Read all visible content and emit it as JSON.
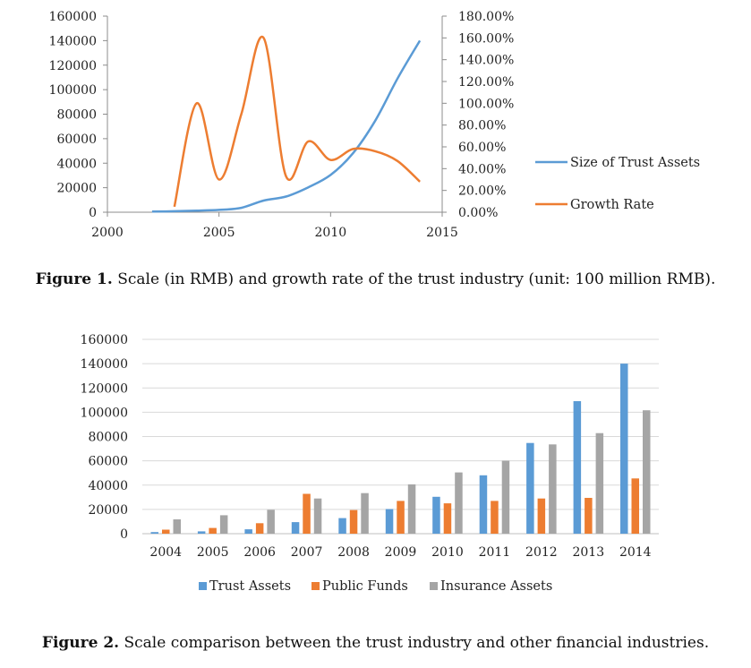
{
  "figures": [
    {
      "caption_label": "Figure 1.",
      "caption_text": "Scale (in RMB) and growth rate of the trust industry (unit: 100 million RMB)."
    },
    {
      "caption_label": "Figure 2.",
      "caption_text": "Scale comparison between the trust industry and other financial industries."
    }
  ],
  "chart_data": [
    {
      "type": "line",
      "title": "",
      "xlabel": "",
      "ylabel": "",
      "xlim": [
        2000,
        2015
      ],
      "x_ticks": [
        "2000",
        "2005",
        "2010",
        "2015"
      ],
      "ylim_left": [
        0,
        160000
      ],
      "y_ticks_left": [
        "0",
        "20000",
        "40000",
        "60000",
        "80000",
        "100000",
        "120000",
        "140000",
        "160000"
      ],
      "ylim_right": [
        0,
        180
      ],
      "y_ticks_right": [
        "0.00%",
        "20.00%",
        "40.00%",
        "60.00%",
        "80.00%",
        "100.00%",
        "120.00%",
        "140.00%",
        "160.00%",
        "180.00%"
      ],
      "grid": false,
      "legend_position": "right",
      "series": [
        {
          "name": "Size of Trust Assets",
          "axis": "left",
          "color": "#5b9bd5",
          "x": [
            2002,
            2003,
            2004,
            2005,
            2006,
            2007,
            2008,
            2009,
            2010,
            2011,
            2012,
            2013,
            2014
          ],
          "y": [
            500,
            800,
            1300,
            1900,
            3600,
            9500,
            12800,
            20300,
            30400,
            48100,
            74700,
            109100,
            140000
          ]
        },
        {
          "name": "Growth Rate",
          "axis": "right",
          "color": "#ed7d31",
          "x": [
            2003,
            2004,
            2005,
            2006,
            2007,
            2008,
            2009,
            2010,
            2011,
            2012,
            2013,
            2014
          ],
          "y": [
            5,
            100,
            30,
            90,
            160,
            33,
            65,
            48,
            58,
            56,
            47,
            28
          ]
        }
      ]
    },
    {
      "type": "bar",
      "title": "",
      "xlabel": "",
      "ylabel": "",
      "categories": [
        "2004",
        "2005",
        "2006",
        "2007",
        "2008",
        "2009",
        "2010",
        "2011",
        "2012",
        "2013",
        "2014"
      ],
      "ylim": [
        0,
        160000
      ],
      "y_ticks": [
        "0",
        "20000",
        "40000",
        "60000",
        "80000",
        "100000",
        "120000",
        "140000",
        "160000"
      ],
      "grid": true,
      "legend_position": "bottom",
      "series": [
        {
          "name": "Trust Assets",
          "color": "#5b9bd5",
          "values": [
            1300,
            1900,
            3600,
            9500,
            12800,
            20300,
            30400,
            48100,
            74700,
            109100,
            140000
          ]
        },
        {
          "name": "Public Funds",
          "color": "#ed7d31",
          "values": [
            3300,
            4700,
            8600,
            32800,
            19500,
            27000,
            25000,
            27000,
            29000,
            29500,
            45500
          ]
        },
        {
          "name": "Insurance Assets",
          "color": "#a5a5a5",
          "values": [
            11800,
            15200,
            19700,
            29000,
            33400,
            40600,
            50400,
            60100,
            73500,
            82800,
            101600
          ]
        }
      ]
    }
  ]
}
